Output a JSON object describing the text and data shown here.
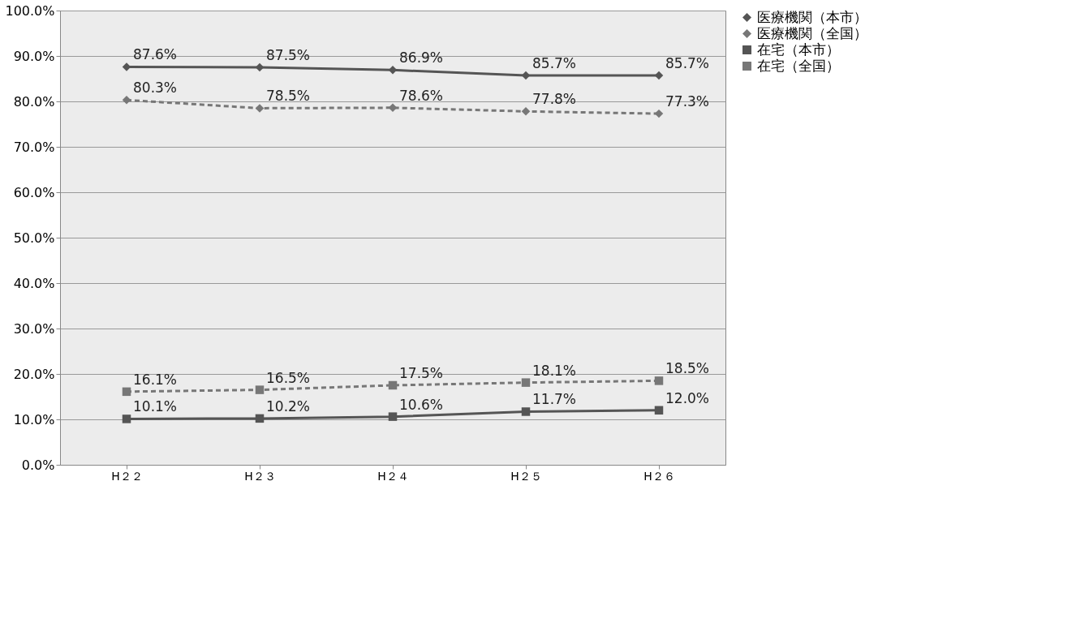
{
  "chart_data": {
    "type": "line",
    "categories": [
      "H２２",
      "H２３",
      "H２４",
      "H２５",
      "H２６"
    ],
    "series": [
      {
        "name": "医療機関（本市）",
        "color": "#555555",
        "marker": "diamond",
        "line_style": "solid",
        "values": [
          87.6,
          87.5,
          86.9,
          85.7,
          85.7
        ],
        "value_labels": [
          "87.6%",
          "87.5%",
          "86.9%",
          "85.7%",
          "85.7%"
        ]
      },
      {
        "name": "医療機関（全国）",
        "color": "#777777",
        "marker": "diamond",
        "line_style": "dashed",
        "values": [
          80.3,
          78.5,
          78.6,
          77.8,
          77.3
        ],
        "value_labels": [
          "80.3%",
          "78.5%",
          "78.6%",
          "77.8%",
          "77.3%"
        ]
      },
      {
        "name": "在宅（本市）",
        "color": "#555555",
        "marker": "square",
        "line_style": "solid",
        "values": [
          10.1,
          10.2,
          10.6,
          11.7,
          12.0
        ],
        "value_labels": [
          "10.1%",
          "10.2%",
          "10.6%",
          "11.7%",
          "12.0%"
        ]
      },
      {
        "name": "在宅（全国）",
        "color": "#777777",
        "marker": "square",
        "line_style": "dashed",
        "values": [
          16.1,
          16.5,
          17.5,
          18.1,
          18.5
        ],
        "value_labels": [
          "16.1%",
          "16.5%",
          "17.5%",
          "18.1%",
          "18.5%"
        ]
      }
    ],
    "ylim": [
      0,
      100
    ],
    "yticks": [
      {
        "value": 0,
        "label": "0.0%"
      },
      {
        "value": 10,
        "label": "10.0%"
      },
      {
        "value": 20,
        "label": "20.0%"
      },
      {
        "value": 30,
        "label": "30.0%"
      },
      {
        "value": 40,
        "label": "40.0%"
      },
      {
        "value": 50,
        "label": "50.0%"
      },
      {
        "value": 60,
        "label": "60.0%"
      },
      {
        "value": 70,
        "label": "70.0%"
      },
      {
        "value": 80,
        "label": "80.0%"
      },
      {
        "value": 90,
        "label": "90.0%"
      },
      {
        "value": 100,
        "label": "100.0%"
      }
    ],
    "grid": "y",
    "legend": "right"
  }
}
